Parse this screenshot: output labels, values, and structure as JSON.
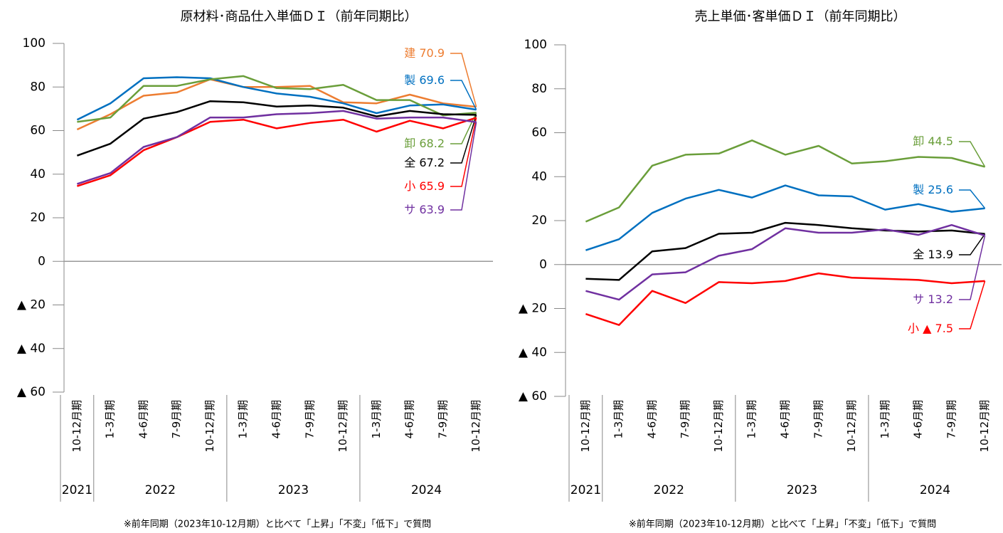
{
  "chart_data": [
    {
      "type": "line",
      "title": "原材料･商品仕入単価ＤＩ（前年同期比）",
      "categories": [
        "10-12月期",
        "1-3月期",
        "4-6月期",
        "7-9月期",
        "10-12月期",
        "1-3月期",
        "4-6月期",
        "7-9月期",
        "10-12月期",
        "1-3月期",
        "4-6月期",
        "7-9月期",
        "10-12月期"
      ],
      "groups": [
        {
          "label": "2021",
          "count": 1
        },
        {
          "label": "2022",
          "count": 4
        },
        {
          "label": "2023",
          "count": 4
        },
        {
          "label": "2024",
          "count": 4
        }
      ],
      "ylim": [
        -60,
        100
      ],
      "yticks": [
        100,
        80,
        60,
        40,
        20,
        0,
        {
          "value": -20,
          "label": "▲ 20"
        },
        {
          "value": -40,
          "label": "▲ 40"
        },
        {
          "value": -60,
          "label": "▲ 60"
        }
      ],
      "series": [
        {
          "name": "建",
          "color": "#ED7D31",
          "values": [
            60.5,
            67.5,
            76,
            77.5,
            83.5,
            80,
            80,
            80.5,
            73,
            72.5,
            76.5,
            72.5,
            70.9
          ]
        },
        {
          "name": "製",
          "color": "#0070C0",
          "values": [
            65,
            72.5,
            84,
            84.5,
            84,
            80,
            77,
            75.5,
            72.5,
            68,
            71.5,
            72,
            69.6
          ]
        },
        {
          "name": "卸",
          "color": "#6A9E3A",
          "values": [
            64,
            66,
            80.5,
            80.5,
            83.5,
            85,
            79.5,
            79,
            81,
            74,
            74,
            67,
            68.2
          ]
        },
        {
          "name": "全",
          "color": "#000000",
          "values": [
            48.5,
            54,
            65.5,
            68.5,
            73.5,
            73,
            71,
            71.5,
            70.5,
            66.5,
            69,
            67.5,
            67.2
          ]
        },
        {
          "name": "小",
          "color": "#FF0000",
          "values": [
            34.5,
            39.5,
            51,
            57,
            64,
            65,
            61,
            63.5,
            65,
            59.5,
            64.5,
            61,
            65.9
          ]
        },
        {
          "name": "サ",
          "color": "#7030A0",
          "values": [
            35.5,
            40.5,
            52.5,
            57,
            66,
            66,
            67.5,
            68,
            69,
            65.5,
            66,
            66,
            63.9
          ]
        }
      ],
      "note": "※前年同期（2023年10-12月期）と比べて「上昇」「不変」「低下」で質問"
    },
    {
      "type": "line",
      "title": "売上単価･客単価ＤＩ（前年同期比）",
      "categories": [
        "10-12月期",
        "1-3月期",
        "4-6月期",
        "7-9月期",
        "10-12月期",
        "1-3月期",
        "4-6月期",
        "7-9月期",
        "10-12月期",
        "1-3月期",
        "4-6月期",
        "7-9月期",
        "10-12月期"
      ],
      "groups": [
        {
          "label": "2021",
          "count": 1
        },
        {
          "label": "2022",
          "count": 4
        },
        {
          "label": "2023",
          "count": 4
        },
        {
          "label": "2024",
          "count": 4
        }
      ],
      "ylim": [
        -60,
        100
      ],
      "yticks": [
        100,
        80,
        60,
        40,
        20,
        0,
        {
          "value": -20,
          "label": "▲ 20"
        },
        {
          "value": -40,
          "label": "▲ 40"
        },
        {
          "value": -60,
          "label": "▲ 60"
        }
      ],
      "series": [
        {
          "name": "卸",
          "color": "#6A9E3A",
          "values": [
            19.5,
            26,
            45,
            50,
            50.5,
            56.5,
            50,
            54,
            46,
            47,
            49,
            48.5,
            44.5
          ]
        },
        {
          "name": "製",
          "color": "#0070C0",
          "values": [
            6.5,
            11.5,
            23.5,
            30,
            34,
            30.5,
            36,
            31.5,
            31,
            25,
            27.5,
            24,
            25.6
          ]
        },
        {
          "name": "全",
          "color": "#000000",
          "values": [
            -6.5,
            -7,
            6,
            7.5,
            14,
            14.5,
            19,
            18,
            16.5,
            15.5,
            15,
            15.5,
            13.9
          ]
        },
        {
          "name": "サ",
          "color": "#7030A0",
          "values": [
            -12,
            -16,
            -4.5,
            -3.5,
            4,
            7,
            16.5,
            14.5,
            14.5,
            16,
            13.5,
            18,
            13.2
          ]
        },
        {
          "name": "小",
          "color": "#FF0000",
          "values": [
            -22.5,
            -27.5,
            -12,
            -17.5,
            -8,
            -8.5,
            -7.5,
            -4,
            -6,
            -6.5,
            -7,
            -8.5,
            -7.5
          ],
          "value_labels": [
            null,
            null,
            null,
            null,
            null,
            null,
            null,
            null,
            null,
            null,
            null,
            null,
            "▲ 7.5"
          ]
        }
      ],
      "note": "※前年同期（2023年10-12月期）と比べて「上昇」「不変」「低下」で質問"
    }
  ]
}
